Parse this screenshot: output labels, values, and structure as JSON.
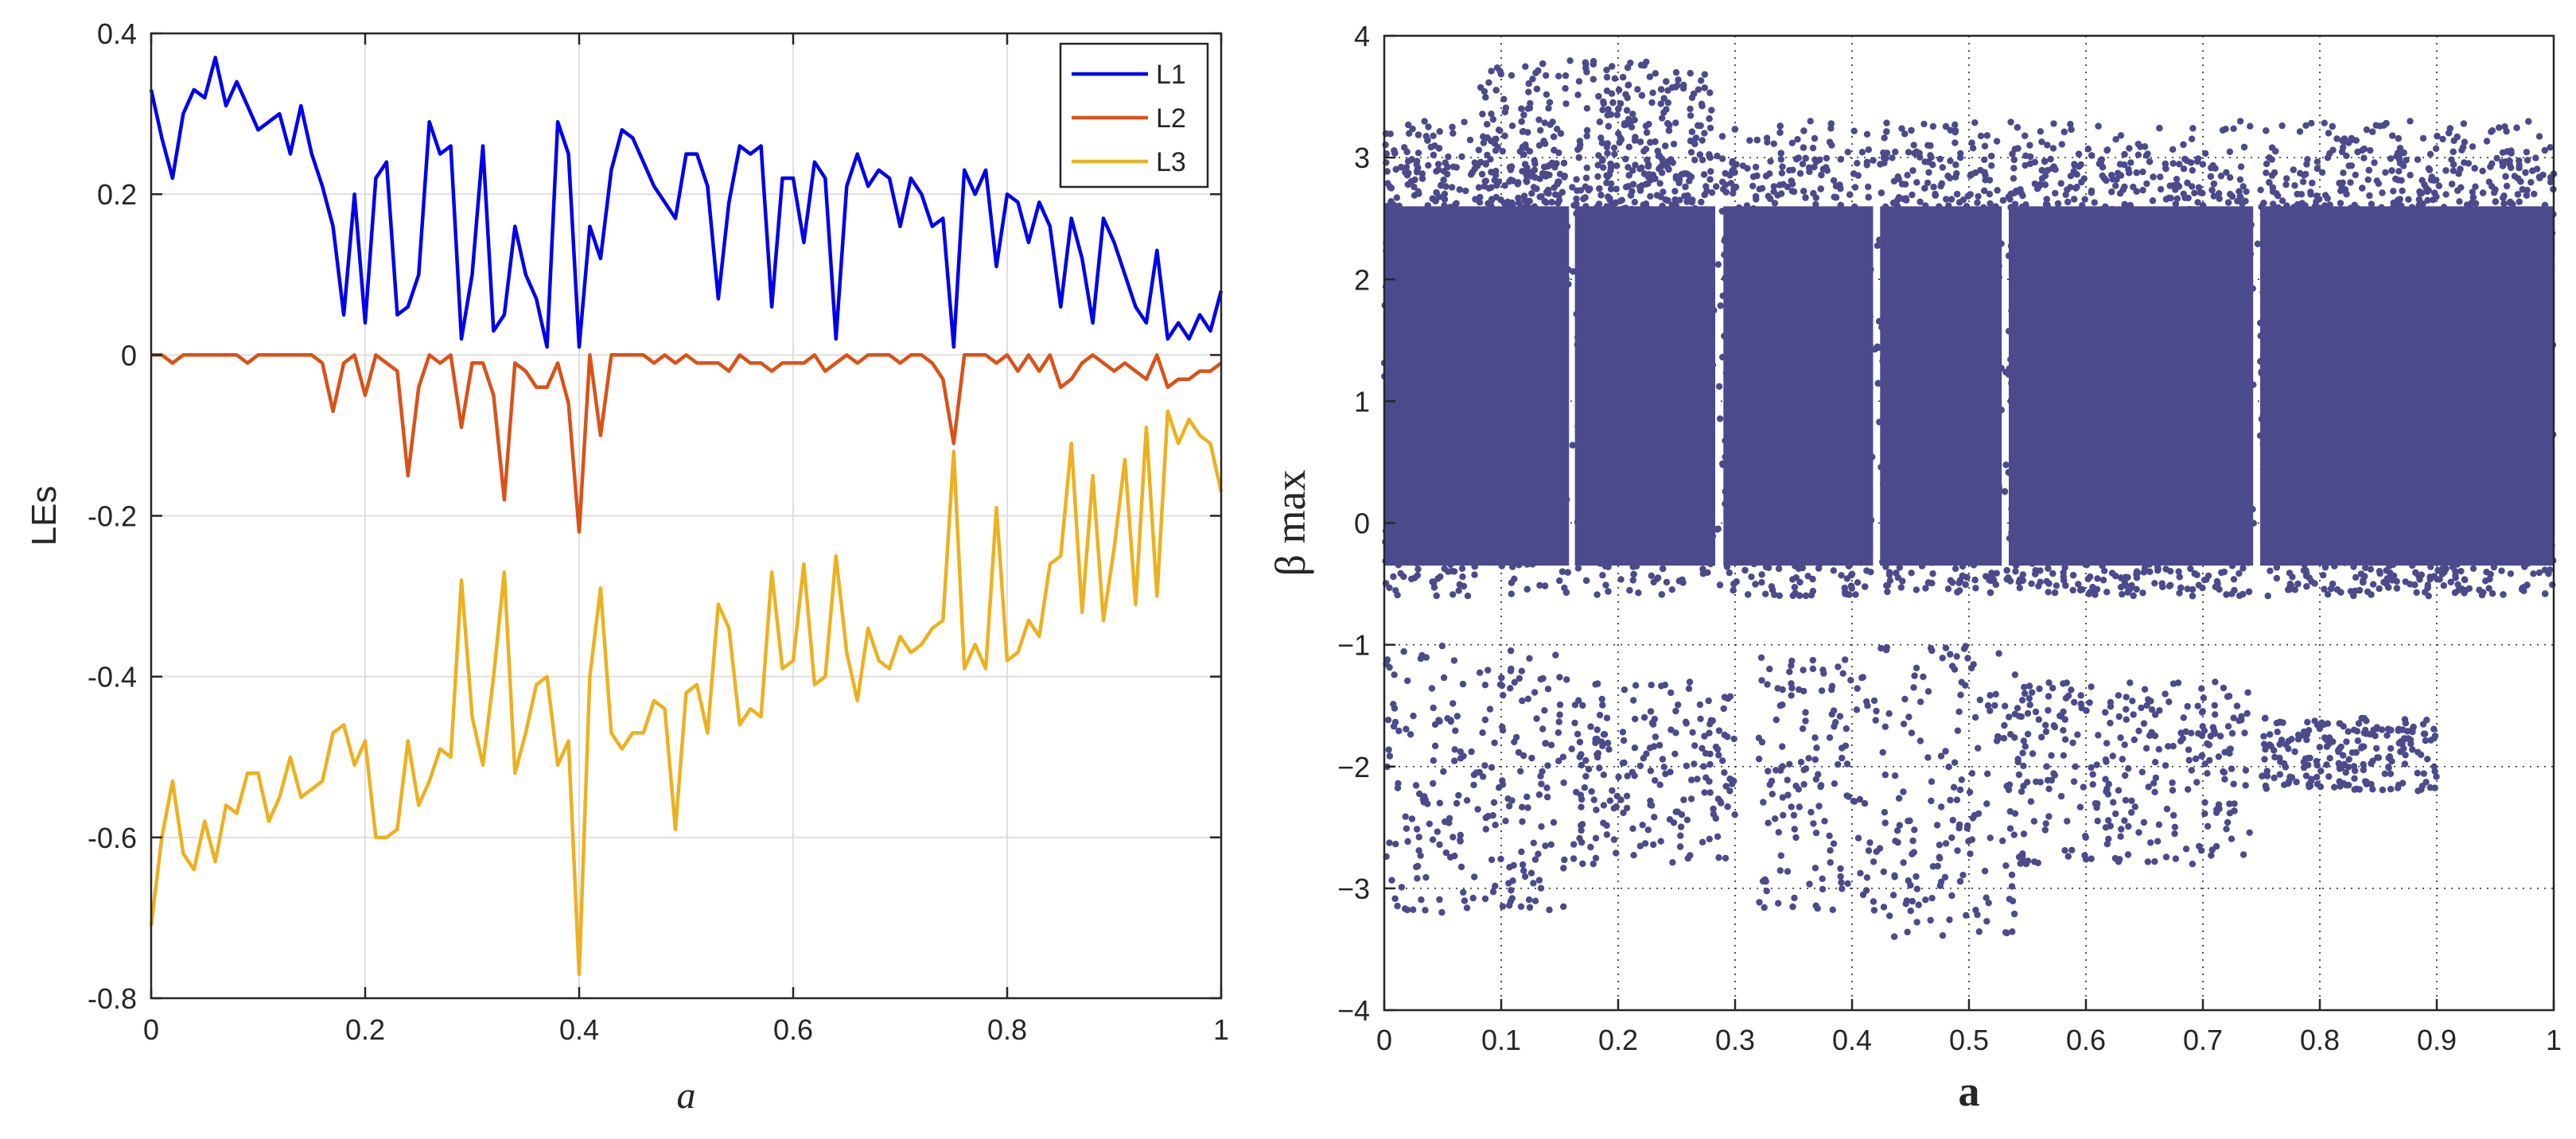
{
  "chart_data": [
    {
      "type": "line",
      "title": "",
      "xlabel": "a",
      "ylabel": "LEs",
      "xlim": [
        0,
        1
      ],
      "ylim": [
        -0.8,
        0.4
      ],
      "grid": true,
      "legend_position": "top-right",
      "x_ticks": [
        "0",
        "0.2",
        "0.4",
        "0.6",
        "0.8",
        "1"
      ],
      "y_ticks": [
        "-0.8",
        "-0.6",
        "-0.4",
        "-0.2",
        "0",
        "0.2",
        "0.4"
      ],
      "x": [
        0.0,
        0.01,
        0.02,
        0.03,
        0.04,
        0.05,
        0.06,
        0.07,
        0.08,
        0.09,
        0.1,
        0.11,
        0.12,
        0.13,
        0.14,
        0.15,
        0.16,
        0.17,
        0.18,
        0.19,
        0.2,
        0.21,
        0.22,
        0.23,
        0.24,
        0.25,
        0.26,
        0.27,
        0.28,
        0.29,
        0.3,
        0.31,
        0.32,
        0.33,
        0.34,
        0.35,
        0.36,
        0.37,
        0.38,
        0.39,
        0.4,
        0.41,
        0.42,
        0.43,
        0.44,
        0.45,
        0.46,
        0.47,
        0.48,
        0.49,
        0.5,
        0.51,
        0.52,
        0.53,
        0.54,
        0.55,
        0.56,
        0.57,
        0.58,
        0.59,
        0.6,
        0.61,
        0.62,
        0.63,
        0.64,
        0.65,
        0.66,
        0.67,
        0.68,
        0.69,
        0.7,
        0.71,
        0.72,
        0.73,
        0.74,
        0.75,
        0.76,
        0.77,
        0.78,
        0.79,
        0.8,
        0.81,
        0.82,
        0.83,
        0.84,
        0.85,
        0.86,
        0.87,
        0.88,
        0.89,
        0.9,
        0.91,
        0.92,
        0.93,
        0.94,
        0.95,
        0.96,
        0.97,
        0.98,
        0.99,
        1.0
      ],
      "series": [
        {
          "name": "L1",
          "color": "#0000ee",
          "values": [
            0.33,
            0.27,
            0.22,
            0.3,
            0.33,
            0.32,
            0.37,
            0.31,
            0.34,
            0.31,
            0.28,
            0.29,
            0.3,
            0.25,
            0.31,
            0.25,
            0.21,
            0.16,
            0.05,
            0.2,
            0.04,
            0.22,
            0.24,
            0.05,
            0.06,
            0.1,
            0.29,
            0.25,
            0.26,
            0.02,
            0.1,
            0.26,
            0.03,
            0.05,
            0.16,
            0.1,
            0.07,
            0.01,
            0.29,
            0.25,
            0.01,
            0.16,
            0.12,
            0.23,
            0.28,
            0.27,
            0.24,
            0.21,
            0.19,
            0.17,
            0.25,
            0.25,
            0.21,
            0.07,
            0.19,
            0.26,
            0.25,
            0.26,
            0.06,
            0.22,
            0.22,
            0.14,
            0.24,
            0.22,
            0.02,
            0.21,
            0.25,
            0.21,
            0.23,
            0.22,
            0.16,
            0.22,
            0.2,
            0.16,
            0.17,
            0.01,
            0.23,
            0.2,
            0.23,
            0.11,
            0.2,
            0.19,
            0.14,
            0.19,
            0.16,
            0.06,
            0.17,
            0.12,
            0.04,
            0.17,
            0.14,
            0.1,
            0.06,
            0.04,
            0.13,
            0.02,
            0.04,
            0.02,
            0.05,
            0.03,
            0.08
          ]
        },
        {
          "name": "L2",
          "color": "#d95319",
          "values": [
            0.0,
            0.0,
            -0.01,
            0.0,
            0.0,
            0.0,
            0.0,
            0.0,
            0.0,
            -0.01,
            0.0,
            0.0,
            0.0,
            0.0,
            0.0,
            0.0,
            -0.01,
            -0.07,
            -0.01,
            0.0,
            -0.05,
            0.0,
            -0.01,
            -0.02,
            -0.15,
            -0.04,
            0.0,
            -0.01,
            0.0,
            -0.09,
            -0.01,
            -0.01,
            -0.05,
            -0.18,
            -0.01,
            -0.02,
            -0.04,
            -0.04,
            -0.01,
            -0.06,
            -0.22,
            0.0,
            -0.1,
            0.0,
            0.0,
            0.0,
            0.0,
            -0.01,
            0.0,
            -0.01,
            0.0,
            -0.01,
            -0.01,
            -0.01,
            -0.02,
            0.0,
            -0.01,
            -0.01,
            -0.02,
            -0.01,
            -0.01,
            -0.01,
            0.0,
            -0.02,
            -0.01,
            0.0,
            -0.01,
            0.0,
            0.0,
            0.0,
            -0.01,
            0.0,
            0.0,
            -0.01,
            -0.03,
            -0.11,
            0.0,
            0.0,
            0.0,
            -0.01,
            0.0,
            -0.02,
            0.0,
            -0.02,
            0.0,
            -0.04,
            -0.03,
            -0.01,
            0.0,
            -0.01,
            -0.02,
            -0.01,
            -0.02,
            -0.03,
            0.0,
            -0.04,
            -0.03,
            -0.03,
            -0.02,
            -0.02,
            -0.01
          ]
        },
        {
          "name": "L3",
          "color": "#edb120",
          "values": [
            -0.71,
            -0.6,
            -0.53,
            -0.62,
            -0.64,
            -0.58,
            -0.63,
            -0.56,
            -0.57,
            -0.52,
            -0.52,
            -0.58,
            -0.55,
            -0.5,
            -0.55,
            -0.54,
            -0.53,
            -0.47,
            -0.46,
            -0.51,
            -0.48,
            -0.6,
            -0.6,
            -0.59,
            -0.48,
            -0.56,
            -0.53,
            -0.49,
            -0.5,
            -0.28,
            -0.45,
            -0.51,
            -0.4,
            -0.27,
            -0.52,
            -0.47,
            -0.41,
            -0.4,
            -0.51,
            -0.48,
            -0.77,
            -0.4,
            -0.29,
            -0.47,
            -0.49,
            -0.47,
            -0.47,
            -0.43,
            -0.44,
            -0.59,
            -0.42,
            -0.41,
            -0.47,
            -0.31,
            -0.34,
            -0.46,
            -0.44,
            -0.45,
            -0.27,
            -0.39,
            -0.38,
            -0.26,
            -0.41,
            -0.4,
            -0.25,
            -0.37,
            -0.43,
            -0.34,
            -0.38,
            -0.39,
            -0.35,
            -0.37,
            -0.36,
            -0.34,
            -0.33,
            -0.12,
            -0.39,
            -0.36,
            -0.39,
            -0.19,
            -0.38,
            -0.37,
            -0.33,
            -0.35,
            -0.26,
            -0.25,
            -0.11,
            -0.32,
            -0.15,
            -0.33,
            -0.24,
            -0.13,
            -0.31,
            -0.09,
            -0.3,
            -0.07,
            -0.11,
            -0.08,
            -0.1,
            -0.11,
            -0.17
          ]
        }
      ]
    },
    {
      "type": "scatter",
      "title": "",
      "xlabel": "a",
      "ylabel": "β max",
      "xlim": [
        0,
        1
      ],
      "ylim": [
        -4,
        4
      ],
      "grid": "dotted",
      "x_ticks": [
        "0",
        "0.1",
        "0.2",
        "0.3",
        "0.4",
        "0.5",
        "0.6",
        "0.7",
        "0.8",
        "0.9",
        "1"
      ],
      "y_ticks": [
        "−4",
        "−3",
        "−2",
        "−1",
        "0",
        "1",
        "2",
        "3",
        "4"
      ],
      "marker_color": "#4a4a8c",
      "dense_band": {
        "y_range": [
          -0.6,
          3.3
        ]
      },
      "band_gaps_x": [
        0.16,
        0.285,
        0.42,
        0.53,
        0.745
      ],
      "sparse_clusters": [
        {
          "x_range": [
            0.0,
            0.16
          ],
          "y_range": [
            -3.2,
            -1.0
          ]
        },
        {
          "x_range": [
            0.16,
            0.3
          ],
          "y_range": [
            -2.8,
            -1.3
          ]
        },
        {
          "x_range": [
            0.32,
            0.42
          ],
          "y_range": [
            -3.2,
            -1.1
          ]
        },
        {
          "x_range": [
            0.42,
            0.54
          ],
          "y_range": [
            -3.4,
            -1.0
          ]
        },
        {
          "x_range": [
            0.54,
            0.74
          ],
          "y_range": [
            -2.8,
            -1.3
          ]
        },
        {
          "x_range": [
            0.75,
            0.9
          ],
          "y_range": [
            -2.2,
            -1.6
          ]
        }
      ]
    }
  ]
}
